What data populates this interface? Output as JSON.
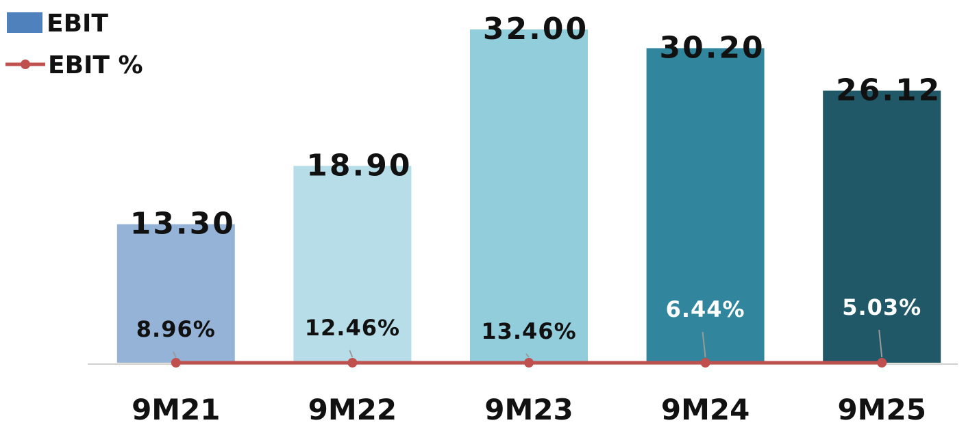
{
  "chart_data": {
    "type": "bar",
    "categories": [
      "9M21",
      "9M22",
      "9M23",
      "9M24",
      "9M25"
    ],
    "series": [
      {
        "name": "EBIT",
        "type": "bar",
        "values": [
          13.3,
          18.9,
          32.0,
          30.2,
          26.12
        ],
        "labels": [
          "13.30",
          "18.90",
          "32.00",
          "30.20",
          "26.12"
        ],
        "colors": [
          "#95B3D7",
          "#B7DDE8",
          "#92CDDC",
          "#31859C",
          "#215868"
        ]
      },
      {
        "name": "EBIT %",
        "type": "line",
        "values": [
          8.96,
          12.46,
          13.46,
          6.44,
          5.03
        ],
        "labels": [
          "8.96%",
          "12.46%",
          "13.46%",
          "6.44%",
          "5.03%"
        ],
        "color": "#C0504D"
      }
    ],
    "legend": {
      "position": "top-left",
      "items": [
        {
          "label": "EBIT",
          "color": "#4F81BD",
          "marker": "square"
        },
        {
          "label": "EBIT %",
          "color": "#C0504D",
          "marker": "line-dot"
        }
      ]
    },
    "pct_label_colors": [
      "#111111",
      "#111111",
      "#111111",
      "#ffffff",
      "#ffffff"
    ],
    "grid": false,
    "ylim": [
      0,
      32
    ]
  }
}
